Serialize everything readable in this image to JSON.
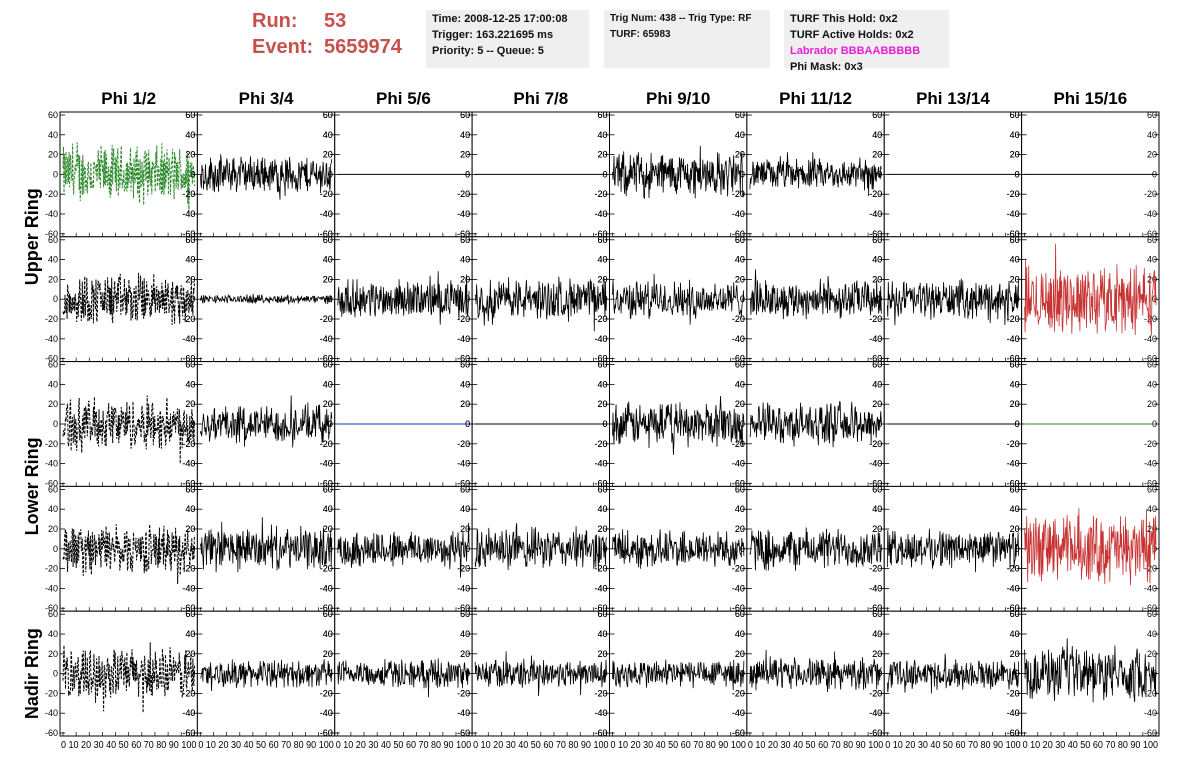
{
  "header": {
    "run_label": "Run:",
    "run_value": "53",
    "event_label": "Event:",
    "event_value": "5659974",
    "info1": [
      "Time: 2008-12-25 17:00:08",
      "Trigger: 163.221695 ms",
      "Priority: 5 -- Queue: 5"
    ],
    "info2": [
      "Trig Num: 438 -- Trig Type: RF",
      "",
      "TURF: 65983"
    ],
    "info3": [
      "TURF This Hold: 0x2",
      "TURF Active Holds: 0x2",
      "Labrador BBBAABBBBB",
      "Phi Mask: 0x3"
    ]
  },
  "colors": {
    "run_text": "#c8504d",
    "green_trace": "#2e8b2e",
    "red_trace": "#c83232",
    "blue_flat": "#2233cc",
    "labrador_text": "#e81ed8"
  },
  "chart_data": {
    "type": "line",
    "columns": [
      "Phi 1/2",
      "Phi 3/4",
      "Phi 5/6",
      "Phi 7/8",
      "Phi 9/10",
      "Phi 11/12",
      "Phi 13/14",
      "Phi 15/16"
    ],
    "rows": [
      "Upper Ring",
      "Lower Ring",
      "Nadir Ring"
    ],
    "panel_rows": 5,
    "row_groups": [
      {
        "label": "Upper Ring",
        "panel_rows": [
          0,
          1
        ]
      },
      {
        "label": "Lower Ring",
        "panel_rows": [
          2,
          3
        ]
      },
      {
        "label": "Nadir Ring",
        "panel_rows": [
          4
        ]
      }
    ],
    "ylim": [
      -60,
      60
    ],
    "yticks": [
      -60,
      -40,
      -20,
      0,
      20,
      40,
      60
    ],
    "xlim": [
      0,
      100
    ],
    "xticks_label": "0 10 20 30 40 50 60 70 80 90 100",
    "panels": [
      [
        {
          "style": "green-dashed",
          "amp": 34
        },
        {
          "style": "solid",
          "amp": 22
        },
        {
          "style": "flat"
        },
        {
          "style": "flat"
        },
        {
          "style": "solid",
          "amp": 26
        },
        {
          "style": "solid",
          "amp": 18
        },
        {
          "style": "flat"
        },
        {
          "style": "flat"
        }
      ],
      [
        {
          "style": "black-dashed",
          "amp": 30
        },
        {
          "style": "solid",
          "amp": 5
        },
        {
          "style": "solid",
          "amp": 22
        },
        {
          "style": "solid",
          "amp": 24
        },
        {
          "style": "solid",
          "amp": 22
        },
        {
          "style": "solid",
          "amp": 22
        },
        {
          "style": "solid",
          "amp": 22
        },
        {
          "style": "red",
          "amp": 40
        }
      ],
      [
        {
          "style": "black-dashed",
          "amp": 30
        },
        {
          "style": "solid",
          "amp": 22
        },
        {
          "style": "flat-blue"
        },
        {
          "style": "flat"
        },
        {
          "style": "solid",
          "amp": 25
        },
        {
          "style": "solid",
          "amp": 24
        },
        {
          "style": "flat"
        },
        {
          "style": "flat-green"
        }
      ],
      [
        {
          "style": "black-dashed",
          "amp": 28
        },
        {
          "style": "solid",
          "amp": 24
        },
        {
          "style": "solid",
          "amp": 22
        },
        {
          "style": "solid",
          "amp": 24
        },
        {
          "style": "solid",
          "amp": 22
        },
        {
          "style": "solid",
          "amp": 24
        },
        {
          "style": "solid",
          "amp": 22
        },
        {
          "style": "red",
          "amp": 40
        }
      ],
      [
        {
          "style": "black-dashed",
          "amp": 30
        },
        {
          "style": "solid",
          "amp": 16
        },
        {
          "style": "solid",
          "amp": 16
        },
        {
          "style": "solid",
          "amp": 17
        },
        {
          "style": "solid",
          "amp": 17
        },
        {
          "style": "solid",
          "amp": 18
        },
        {
          "style": "solid",
          "amp": 17
        },
        {
          "style": "solid",
          "amp": 30
        }
      ]
    ]
  }
}
